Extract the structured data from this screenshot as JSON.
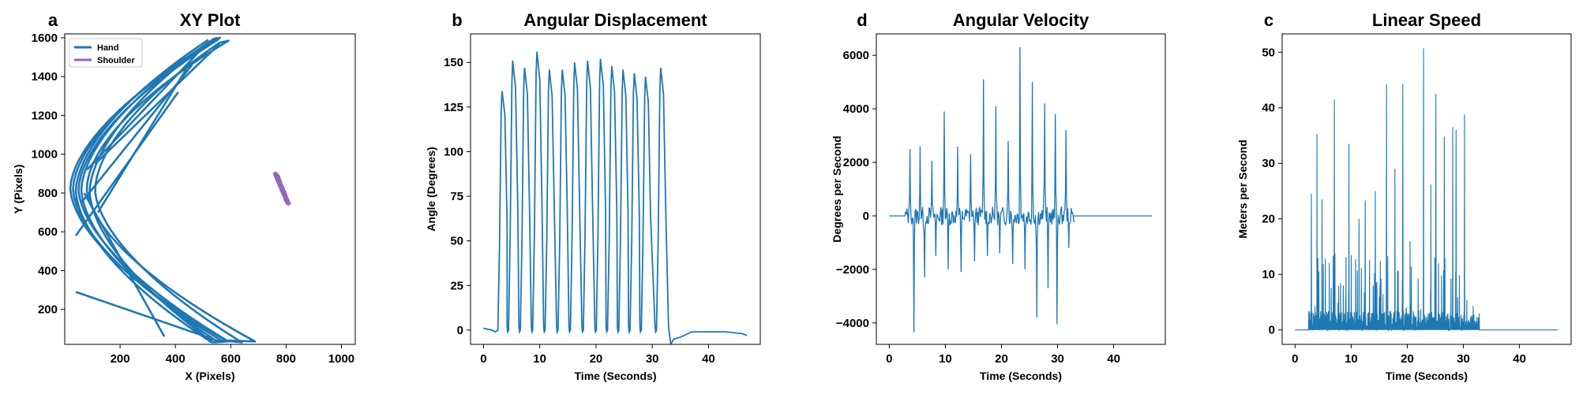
{
  "figure": {
    "colors": {
      "primary": "#1f77b4",
      "secondary": "#9467bd"
    }
  },
  "chart_data": [
    {
      "id": "xy",
      "letter": "a",
      "type": "line",
      "title": "XY Plot",
      "xlabel": "X (Pixels)",
      "ylabel": "Y (Pixels)",
      "xlim": [
        0,
        1050
      ],
      "ylim": [
        20,
        1620
      ],
      "xticks": [
        200,
        400,
        600,
        800,
        1000
      ],
      "yticks": [
        200,
        400,
        600,
        800,
        1000,
        1200,
        1400,
        1600
      ],
      "legend_position": "top-left",
      "legend": [
        "Hand",
        "Shoulder"
      ],
      "series": [
        {
          "name": "Hand",
          "color": "#1f77b4",
          "pattern": "loops",
          "arc": {
            "tops": [
              [
                510,
                1590
              ],
              [
                530,
                1595
              ],
              [
                545,
                1600
              ],
              [
                520,
                1585
              ],
              [
                500,
                1575
              ],
              [
                535,
                1598
              ],
              [
                525,
                1590
              ],
              [
                510,
                1580
              ]
            ],
            "bottoms": [
              [
                540,
                30
              ],
              [
                560,
                35
              ],
              [
                600,
                40
              ],
              [
                760,
                35
              ],
              [
                700,
                30
              ],
              [
                580,
                40
              ],
              [
                620,
                35
              ],
              [
                550,
                30
              ]
            ],
            "left_x": [
              40,
              60,
              20,
              80,
              110,
              30,
              50,
              90
            ]
          },
          "chords": [
            [
              [
                40,
                290
              ],
              [
                560,
                35
              ]
            ],
            [
              [
                60,
                750
              ],
              [
                460,
                1460
              ]
            ],
            [
              [
                80,
                920
              ],
              [
                480,
                1520
              ]
            ],
            [
              [
                120,
                700
              ],
              [
                440,
                1440
              ]
            ],
            [
              [
                40,
                580
              ],
              [
                410,
                1320
              ]
            ],
            [
              [
                70,
                800
              ],
              [
                360,
                60
              ]
            ],
            [
              [
                110,
                950
              ],
              [
                560,
                1570
              ]
            ]
          ]
        },
        {
          "name": "Shoulder",
          "color": "#9467bd",
          "pattern": "cluster",
          "x_range": [
            760,
            820
          ],
          "y_range": [
            730,
            910
          ]
        }
      ]
    },
    {
      "id": "ang",
      "letter": "b",
      "type": "line",
      "title": "Angular Displacement",
      "xlabel": "Time (Seconds)",
      "ylabel": "Angle (Degrees)",
      "xlim": [
        -2.3,
        49.2
      ],
      "ylim": [
        -8,
        166
      ],
      "xticks": [
        0,
        10,
        20,
        30,
        40
      ],
      "yticks": [
        0,
        25,
        50,
        75,
        100,
        125,
        150
      ],
      "series": [
        {
          "name": "Angle",
          "color": "#1f77b4",
          "pre": [
            [
              0,
              1
            ],
            [
              1.5,
              0
            ],
            [
              2.1,
              -1
            ]
          ],
          "peaks": [
            [
              3.3,
              134
            ],
            [
              5.2,
              151
            ],
            [
              7.3,
              147
            ],
            [
              9.5,
              156
            ],
            [
              11.7,
              146
            ],
            [
              14.0,
              146
            ],
            [
              16.2,
              150
            ],
            [
              18.5,
              151
            ],
            [
              20.8,
              152
            ],
            [
              22.8,
              148
            ],
            [
              24.8,
              146
            ],
            [
              26.8,
              144
            ],
            [
              28.8,
              142
            ],
            [
              31.5,
              147
            ]
          ],
          "trail": [
            [
              33.3,
              -8
            ],
            [
              33.8,
              -5
            ],
            [
              35,
              -4
            ],
            [
              37,
              -1
            ],
            [
              40,
              -1
            ],
            [
              43,
              -1
            ],
            [
              46,
              -2
            ],
            [
              46.8,
              -3
            ]
          ]
        }
      ]
    },
    {
      "id": "vel",
      "letter": "d",
      "type": "line",
      "title": "Angular Velocity",
      "xlabel": "Time (Seconds)",
      "ylabel": "Degrees per Second",
      "xlim": [
        -2.3,
        49.2
      ],
      "ylim": [
        -4800,
        6800
      ],
      "xticks": [
        0,
        10,
        20,
        30,
        40
      ],
      "yticks": [
        -4000,
        -2000,
        0,
        2000,
        4000,
        6000
      ],
      "series": [
        {
          "name": "Velocity",
          "color": "#1f77b4",
          "flat_until": 2.8,
          "active_until": 32.8,
          "end": 46.8,
          "pos_spikes": [
            [
              3.7,
              2500
            ],
            [
              5.5,
              2600
            ],
            [
              7.6,
              2050
            ],
            [
              9.8,
              3900
            ],
            [
              12.2,
              2600
            ],
            [
              14.5,
              2300
            ],
            [
              16.8,
              5100
            ],
            [
              19.0,
              4100
            ],
            [
              21.2,
              2800
            ],
            [
              23.3,
              6300
            ],
            [
              25.5,
              5000
            ],
            [
              27.7,
              4200
            ],
            [
              29.6,
              3800
            ],
            [
              31.5,
              3200
            ]
          ],
          "neg_spikes": [
            [
              4.4,
              -4350
            ],
            [
              6.3,
              -2300
            ],
            [
              8.3,
              -1500
            ],
            [
              10.5,
              -2000
            ],
            [
              12.8,
              -2100
            ],
            [
              15.2,
              -1700
            ],
            [
              17.5,
              -1500
            ],
            [
              19.7,
              -1400
            ],
            [
              22.0,
              -1800
            ],
            [
              24.2,
              -2000
            ],
            [
              26.3,
              -3800
            ],
            [
              28.3,
              -2700
            ],
            [
              29.9,
              -4050
            ],
            [
              32.0,
              -1200
            ]
          ]
        }
      ]
    },
    {
      "id": "lin",
      "letter": "c",
      "type": "line",
      "title": "Linear Speed",
      "xlabel": "Time (Seconds)",
      "ylabel": "Meters per Second",
      "xlim": [
        -2.3,
        49.2
      ],
      "ylim": [
        -2.6,
        53.3
      ],
      "xticks": [
        0,
        10,
        20,
        30,
        40
      ],
      "yticks": [
        0,
        10,
        20,
        30,
        40,
        50
      ],
      "series": [
        {
          "name": "Speed",
          "color": "#1f77b4",
          "flat_until": 2.4,
          "active_until": 32.8,
          "end": 46.8,
          "spikes": [
            [
              2.9,
              24.5
            ],
            [
              3.9,
              35.3
            ],
            [
              4.8,
              23.5
            ],
            [
              6.1,
              12
            ],
            [
              7.0,
              41.5
            ],
            [
              8.6,
              8
            ],
            [
              9.6,
              33.5
            ],
            [
              11.4,
              20
            ],
            [
              12.5,
              23.3
            ],
            [
              14.3,
              25
            ],
            [
              16.3,
              44.2
            ],
            [
              17.8,
              29
            ],
            [
              19.2,
              44.3
            ],
            [
              20.5,
              16
            ],
            [
              22.9,
              50.7
            ],
            [
              24.2,
              26.2
            ],
            [
              25.1,
              42.5
            ],
            [
              26.6,
              34.8
            ],
            [
              28.1,
              36.5
            ],
            [
              28.7,
              36
            ],
            [
              30.2,
              38.8
            ]
          ]
        }
      ]
    }
  ]
}
